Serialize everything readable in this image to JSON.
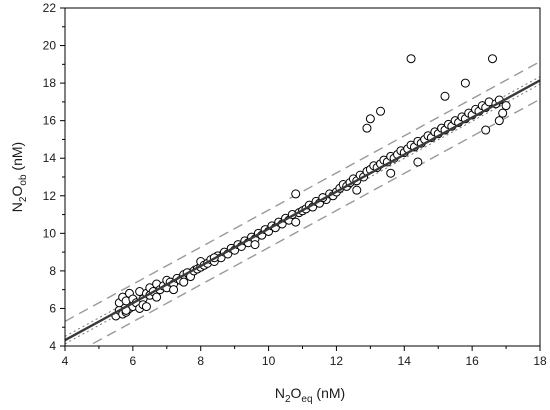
{
  "chart_data": {
    "type": "scatter",
    "title": "",
    "xlabel": {
      "base": "N",
      "sub1": "2",
      "mid": "O",
      "sub2": "eq",
      "unit": " (nM)"
    },
    "ylabel": {
      "base": "N",
      "sub1": "2",
      "mid": "O",
      "sub2": "ob",
      "unit": " (nM)"
    },
    "xlim": [
      4,
      18
    ],
    "ylim": [
      4,
      22
    ],
    "x_ticks": [
      4,
      6,
      8,
      10,
      12,
      14,
      16,
      18
    ],
    "y_ticks": [
      4,
      6,
      8,
      10,
      12,
      14,
      16,
      18,
      20,
      22
    ],
    "grid": false,
    "legend": "none",
    "colors": {
      "marker_edge": "#000000",
      "marker_fill": "#ffffff",
      "regression_line": "#3a3a3a",
      "interval_lines": "#999999"
    },
    "regression": {
      "slope": 0.988,
      "intercept": 0.36,
      "x_range": [
        4,
        18
      ]
    },
    "prediction_interval": {
      "offset": 1.0,
      "style": "dashed"
    },
    "confidence_band": {
      "style": "dotted"
    },
    "series": [
      {
        "marker": "open-circle",
        "x": [
          5.5,
          5.6,
          5.6,
          5.7,
          5.7,
          5.8,
          5.8,
          5.9,
          5.9,
          6.0,
          6.0,
          6.1,
          6.2,
          6.2,
          6.3,
          6.3,
          6.4,
          6.5,
          6.5,
          6.6,
          6.7,
          6.7,
          6.8,
          6.9,
          7.0,
          7.0,
          7.1,
          7.2,
          7.3,
          7.4,
          7.5,
          7.5,
          7.6,
          7.7,
          7.8,
          7.9,
          8.0,
          8.0,
          8.1,
          8.2,
          8.3,
          8.4,
          8.5,
          8.6,
          8.7,
          8.8,
          8.9,
          9.0,
          9.1,
          9.2,
          9.3,
          9.4,
          9.5,
          9.6,
          9.7,
          9.8,
          9.9,
          10.0,
          10.1,
          10.2,
          10.3,
          10.4,
          10.5,
          10.6,
          10.7,
          10.8,
          10.9,
          11.0,
          11.1,
          11.2,
          11.3,
          11.4,
          11.5,
          11.6,
          11.7,
          11.8,
          11.9,
          12.0,
          12.1,
          12.2,
          12.3,
          12.4,
          12.5,
          12.6,
          12.7,
          12.8,
          12.9,
          12.9,
          13.0,
          13.0,
          13.1,
          13.2,
          13.3,
          13.3,
          13.4,
          13.5,
          13.6,
          13.7,
          13.8,
          13.9,
          14.0,
          14.1,
          14.2,
          14.2,
          14.3,
          14.4,
          14.5,
          14.6,
          14.7,
          14.8,
          14.9,
          15.0,
          15.1,
          15.2,
          15.3,
          15.4,
          15.5,
          15.6,
          15.7,
          15.8,
          15.9,
          16.0,
          16.1,
          16.2,
          16.3,
          16.4,
          16.5,
          16.6,
          16.7,
          16.8,
          16.9,
          17.0,
          5.8,
          6.4,
          7.2,
          8.4,
          9.6,
          10.8,
          11.6,
          12.6,
          13.6,
          14.4,
          15.2,
          15.8,
          16.4,
          16.8
        ],
        "y": [
          5.6,
          5.9,
          6.3,
          5.7,
          6.6,
          5.8,
          6.4,
          6.0,
          6.8,
          6.1,
          6.5,
          6.3,
          6.0,
          6.9,
          6.5,
          6.2,
          6.8,
          6.7,
          7.1,
          6.9,
          6.6,
          7.3,
          7.0,
          7.2,
          7.1,
          7.5,
          7.4,
          7.3,
          7.6,
          7.5,
          7.8,
          7.4,
          7.9,
          7.7,
          8.0,
          8.1,
          8.2,
          8.5,
          8.3,
          8.4,
          8.6,
          8.5,
          8.8,
          8.7,
          9.0,
          8.9,
          9.2,
          9.1,
          9.4,
          9.3,
          9.6,
          9.5,
          9.8,
          9.7,
          10.0,
          9.9,
          10.2,
          10.1,
          10.4,
          10.3,
          10.6,
          10.5,
          10.8,
          10.7,
          11.0,
          12.1,
          11.1,
          11.2,
          11.3,
          11.5,
          11.4,
          11.7,
          11.6,
          11.9,
          11.8,
          12.1,
          12.0,
          12.2,
          12.4,
          12.6,
          12.5,
          12.7,
          12.9,
          12.8,
          13.1,
          13.0,
          13.3,
          15.6,
          13.4,
          16.1,
          13.6,
          13.5,
          13.7,
          16.5,
          13.9,
          13.8,
          14.1,
          14.0,
          14.2,
          14.4,
          14.3,
          14.5,
          14.7,
          19.3,
          14.6,
          14.9,
          14.8,
          15.0,
          15.2,
          15.1,
          15.4,
          15.3,
          15.6,
          15.5,
          15.8,
          15.7,
          16.0,
          15.9,
          16.2,
          16.1,
          16.4,
          16.3,
          16.6,
          16.5,
          16.8,
          16.7,
          17.0,
          19.3,
          16.9,
          17.1,
          16.4,
          16.8,
          5.9,
          6.1,
          7.0,
          8.7,
          9.4,
          10.6,
          11.9,
          12.3,
          13.2,
          13.8,
          17.3,
          18.0,
          15.5,
          16.0
        ]
      }
    ]
  }
}
